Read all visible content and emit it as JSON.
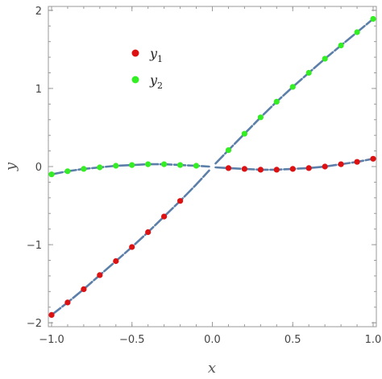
{
  "chart_data": {
    "type": "scatter",
    "xlabel": "x",
    "ylabel": "y",
    "xlim": [
      -1.0,
      1.0
    ],
    "ylim": [
      -2.0,
      2.0
    ],
    "x_ticks": [
      "-1.0",
      "-0.5",
      "0.0",
      "0.5",
      "1.0"
    ],
    "y_ticks": [
      "-2",
      "-1",
      "0",
      "1",
      "2"
    ],
    "x_tick_values": [
      -1.0,
      -0.5,
      0.0,
      0.5,
      1.0
    ],
    "y_tick_values": [
      -2,
      -1,
      0,
      1,
      2
    ],
    "grid": false,
    "legend_position": "top-left",
    "fit_line_color": "#5b7fa8",
    "series": [
      {
        "name": "y",
        "subscript": "1",
        "color": "#dd1111",
        "x": [
          -1.0,
          -0.9,
          -0.8,
          -0.7,
          -0.6,
          -0.5,
          -0.4,
          -0.3,
          -0.2,
          0.1,
          0.2,
          0.3,
          0.4,
          0.5,
          0.6,
          0.7,
          0.8,
          0.9,
          1.0
        ],
        "values": [
          -1.9,
          -1.74,
          -1.57,
          -1.39,
          -1.21,
          -1.03,
          -0.84,
          -0.64,
          -0.44,
          -0.02,
          -0.03,
          -0.04,
          -0.04,
          -0.03,
          -0.02,
          0.0,
          0.03,
          0.06,
          0.1
        ]
      },
      {
        "name": "y",
        "subscript": "2",
        "color": "#33ee22",
        "x": [
          -1.0,
          -0.9,
          -0.8,
          -0.7,
          -0.6,
          -0.5,
          -0.4,
          -0.3,
          -0.2,
          -0.1,
          0.1,
          0.2,
          0.3,
          0.4,
          0.5,
          0.6,
          0.7,
          0.8,
          0.9,
          1.0
        ],
        "values": [
          -0.1,
          -0.06,
          -0.03,
          -0.01,
          0.01,
          0.02,
          0.03,
          0.03,
          0.02,
          0.01,
          0.21,
          0.42,
          0.63,
          0.83,
          1.02,
          1.2,
          1.38,
          1.55,
          1.72,
          1.89
        ]
      }
    ],
    "fit_curves": [
      {
        "x": [
          -1.0,
          -0.9,
          -0.8,
          -0.7,
          -0.6,
          -0.5,
          -0.4,
          -0.3,
          -0.2,
          -0.1,
          -0.02
        ],
        "values": [
          -1.9,
          -1.74,
          -1.57,
          -1.39,
          -1.21,
          -1.03,
          -0.84,
          -0.64,
          -0.44,
          -0.23,
          -0.05
        ]
      },
      {
        "x": [
          -1.0,
          -0.9,
          -0.8,
          -0.7,
          -0.6,
          -0.5,
          -0.4,
          -0.3,
          -0.2,
          -0.1,
          -0.02
        ],
        "values": [
          -0.1,
          -0.06,
          -0.03,
          -0.01,
          0.01,
          0.02,
          0.03,
          0.03,
          0.02,
          0.01,
          0.0
        ]
      },
      {
        "x": [
          0.02,
          0.1,
          0.2,
          0.3,
          0.4,
          0.5,
          0.6,
          0.7,
          0.8,
          0.9,
          1.0
        ],
        "values": [
          0.04,
          0.21,
          0.42,
          0.63,
          0.83,
          1.02,
          1.2,
          1.38,
          1.55,
          1.72,
          1.89
        ]
      },
      {
        "x": [
          0.02,
          0.1,
          0.2,
          0.3,
          0.4,
          0.5,
          0.6,
          0.7,
          0.8,
          0.9,
          1.0
        ],
        "values": [
          -0.01,
          -0.02,
          -0.03,
          -0.04,
          -0.04,
          -0.03,
          -0.02,
          0.0,
          0.03,
          0.06,
          0.1
        ]
      }
    ]
  }
}
